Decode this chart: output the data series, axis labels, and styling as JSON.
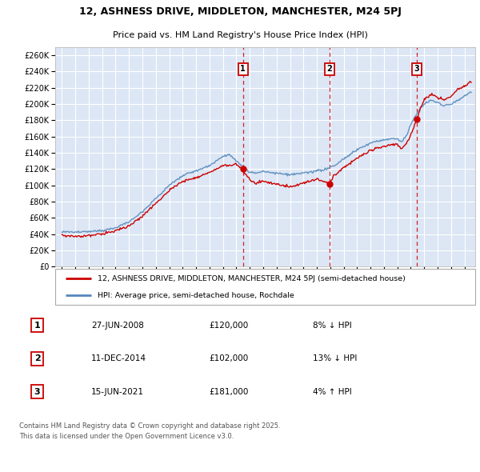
{
  "title_line1": "12, ASHNESS DRIVE, MIDDLETON, MANCHESTER, M24 5PJ",
  "title_line2": "Price paid vs. HM Land Registry's House Price Index (HPI)",
  "background_color": "#ffffff",
  "plot_bg_color": "#dce6f5",
  "grid_color": "#ffffff",
  "line1_color": "#cc0000",
  "line2_color": "#5588bb",
  "legend_label1": "12, ASHNESS DRIVE, MIDDLETON, MANCHESTER, M24 5PJ (semi-detached house)",
  "legend_label2": "HPI: Average price, semi-detached house, Rochdale",
  "transactions": [
    {
      "num": 1,
      "date": "27-JUN-2008",
      "price": "£120,000",
      "hpi": "8% ↓ HPI",
      "year": 2008.49,
      "price_val": 120000
    },
    {
      "num": 2,
      "date": "11-DEC-2014",
      "price": "£102,000",
      "hpi": "13% ↓ HPI",
      "year": 2014.94,
      "price_val": 102000
    },
    {
      "num": 3,
      "date": "15-JUN-2021",
      "price": "£181,000",
      "hpi": "4% ↑ HPI",
      "year": 2021.45,
      "price_val": 181000
    }
  ],
  "footnote": "Contains HM Land Registry data © Crown copyright and database right 2025.\nThis data is licensed under the Open Government Licence v3.0.",
  "ylim": [
    0,
    270000
  ],
  "yticks": [
    0,
    20000,
    40000,
    60000,
    80000,
    100000,
    120000,
    140000,
    160000,
    180000,
    200000,
    220000,
    240000,
    260000
  ],
  "xmin": 1994.5,
  "xmax": 2025.8
}
